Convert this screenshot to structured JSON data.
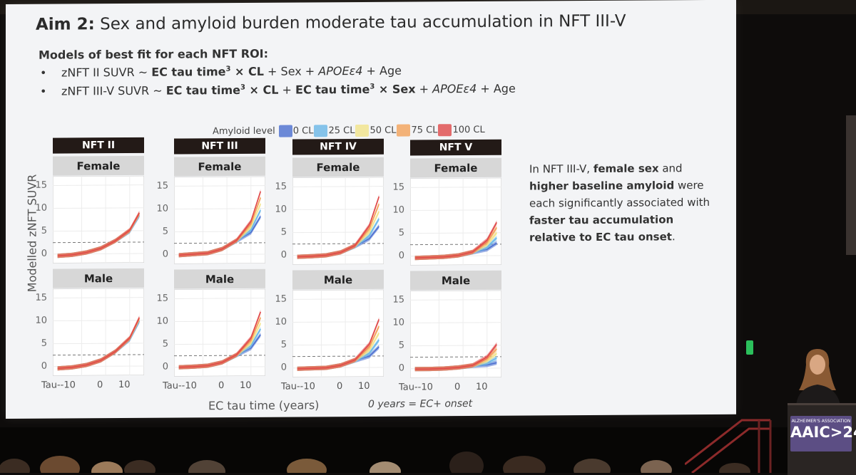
{
  "slide": {
    "title_bold": "Aim 2:",
    "title_rest": " Sex and amyloid burden moderate tau accumulation in NFT III-V",
    "subheading": "Models of best fit for each NFT ROI:",
    "bullet1": {
      "a": "zNFT II SUVR ~ ",
      "b": "EC tau time",
      "sup": "3",
      "c": " × ",
      "d": "CL",
      "e": " + Sex + ",
      "f": "APOEε4",
      "g": " + Age"
    },
    "bullet2": {
      "a": "zNFT III-V SUVR ~ ",
      "b": "EC tau time",
      "sup": "3",
      "c": " × ",
      "d": "CL",
      "e": " + ",
      "f": "EC tau time",
      "sup2": "3",
      "g": " × ",
      "h": "Sex",
      "i": " + ",
      "j": "APOEε4",
      "k": " + Age"
    },
    "side_text": {
      "p1": "In NFT III-V, ",
      "p2": "female sex",
      "p3": " and ",
      "p4": "higher baseline amyloid",
      "p5": " were each significantly associated with ",
      "p6": "faster tau accumulation relative to EC tau onset",
      "p7": "."
    }
  },
  "chart_data": {
    "type": "line",
    "legend_title": "Amyloid level",
    "series": [
      {
        "name": "0 CL",
        "color": "#4b6fd0"
      },
      {
        "name": "25 CL",
        "color": "#6ab8e8"
      },
      {
        "name": "50 CL",
        "color": "#f2e48a"
      },
      {
        "name": "75 CL",
        "color": "#f4a259"
      },
      {
        "name": "100 CL",
        "color": "#e04a4a"
      }
    ],
    "panels": [
      "NFT II",
      "NFT III",
      "NFT IV",
      "NFT V"
    ],
    "rows": [
      "Female",
      "Male"
    ],
    "ylabel": "Modelled zNFT SUVR",
    "xlabel": "EC tau time (years)",
    "x_note": "0 years = EC+ onset",
    "yticks": [
      "0",
      "5",
      "10",
      "15"
    ],
    "xticks": [
      "Tau--10",
      "0",
      "10"
    ],
    "ylim": [
      -2,
      17
    ],
    "xlim": [
      -22,
      16
    ],
    "reference_line": 2.5,
    "curves": {
      "NFT II": {
        "Female": {
          "base": [
            -0.4,
            -0.2,
            0.3,
            1.2,
            2.8,
            5.0,
            8.6
          ],
          "spread": 0.6
        },
        "Male": {
          "base": [
            -0.4,
            -0.2,
            0.3,
            1.3,
            3.2,
            6.0,
            10.2
          ],
          "spread": 0.8
        }
      },
      "NFT III": {
        "Female": {
          "base": [
            -0.1,
            0.1,
            0.3,
            1.2,
            3.0,
            6.0,
            11.0
          ],
          "spread": 5.5
        },
        "Male": {
          "base": [
            0.0,
            0.1,
            0.3,
            1.0,
            2.6,
            5.2,
            9.5
          ],
          "spread": 5.0
        }
      },
      "NFT IV": {
        "Female": {
          "base": [
            -0.3,
            -0.2,
            0.0,
            0.6,
            2.0,
            5.0,
            9.5
          ],
          "spread": 6.5
        },
        "Male": {
          "base": [
            -0.2,
            -0.1,
            0.0,
            0.5,
            1.6,
            3.8,
            7.5
          ],
          "spread": 6.0
        }
      },
      "NFT V": {
        "Female": {
          "base": [
            -0.4,
            -0.3,
            -0.2,
            0.1,
            0.8,
            2.4,
            5.0
          ],
          "spread": 4.5
        },
        "Male": {
          "base": [
            -0.1,
            -0.1,
            0.0,
            0.2,
            0.6,
            1.6,
            3.2
          ],
          "spread": 4.0
        }
      }
    },
    "curve_x": [
      -20,
      -14,
      -8,
      -2,
      4,
      10,
      14
    ]
  },
  "venue": {
    "podium_small": "ALZHEIMER'S ASSOCIATION",
    "podium_big": "AAIC>24"
  }
}
